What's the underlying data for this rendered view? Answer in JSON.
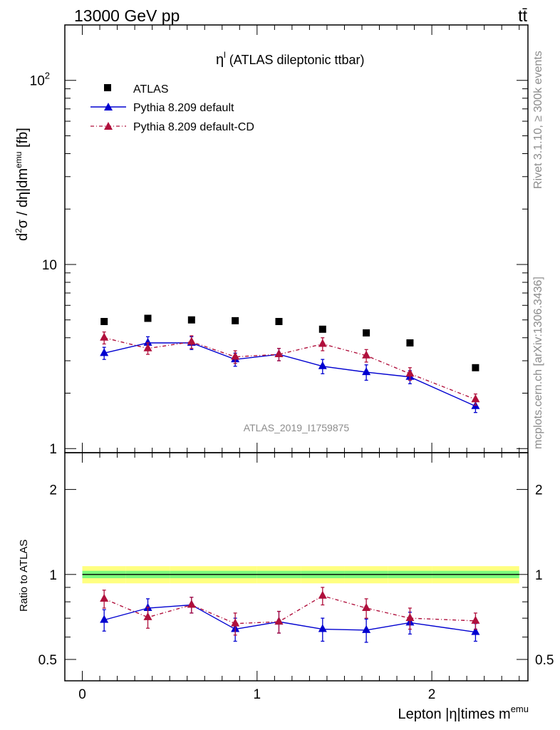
{
  "header": {
    "left": "13000 GeV pp",
    "right": "tt̄"
  },
  "side_labels": {
    "rivet": "Rivet 3.1.10, ≥ 300k events",
    "mcplots": "mcplots.cern.ch [arXiv:1306.3436]"
  },
  "plot_title": {
    "main": "η",
    "sup": "l",
    "rest": " (ATLAS dileptonic ttbar)"
  },
  "watermark": "ATLAS_2019_I1759875",
  "y_label_main": "d²σ / dη|dm^emu [fb]",
  "y_label_ratio": "Ratio to ATLAS",
  "x_label": {
    "main": "Lepton |η|times m",
    "sup": "emu"
  },
  "legend": [
    {
      "label": "ATLAS",
      "series": "atlas"
    },
    {
      "label": "Pythia 8.209 default",
      "series": "default"
    },
    {
      "label": "Pythia 8.209 default-CD",
      "series": "cd"
    }
  ],
  "colors": {
    "atlas": "#000000",
    "default": "#0000d0",
    "cd": "#b0103c",
    "band_inner": "#7cfc7c",
    "band_outer": "#ffff80"
  },
  "chart_data": {
    "type": "scatter",
    "x_range": [
      -0.1,
      2.55
    ],
    "main": {
      "y_scale": "log",
      "y_range": [
        0.95,
        200
      ],
      "y_tick_labels": [
        {
          "value": 1,
          "label": "1"
        },
        {
          "value": 10,
          "label": "10"
        },
        {
          "value": 100,
          "label": "10",
          "sup": "2"
        }
      ]
    },
    "ratio": {
      "y_scale": "log",
      "y_range": [
        0.42,
        2.7
      ],
      "y_tick_labels": [
        {
          "value": 0.5,
          "label": "0.5"
        },
        {
          "value": 1,
          "label": "1"
        },
        {
          "value": 2,
          "label": "2"
        }
      ]
    },
    "x_tick_labels": [
      {
        "value": 0,
        "label": "0"
      },
      {
        "value": 1,
        "label": "1"
      },
      {
        "value": 2,
        "label": "2"
      }
    ],
    "bins": [
      [
        0.0,
        0.25
      ],
      [
        0.25,
        0.5
      ],
      [
        0.5,
        0.75
      ],
      [
        0.75,
        1.0
      ],
      [
        1.0,
        1.25
      ],
      [
        1.25,
        1.5
      ],
      [
        1.5,
        1.75
      ],
      [
        1.75,
        2.0
      ],
      [
        2.0,
        2.5
      ]
    ],
    "x": [
      0.125,
      0.375,
      0.625,
      0.875,
      1.125,
      1.375,
      1.625,
      1.875,
      2.25
    ],
    "series": [
      {
        "name": "ATLAS",
        "key": "atlas",
        "values": [
          4.9,
          5.1,
          5.0,
          4.95,
          4.9,
          4.45,
          4.25,
          3.75,
          2.75
        ],
        "rel_band_inner": 0.03,
        "rel_band_outer": 0.07
      },
      {
        "name": "Pythia 8.209 default",
        "key": "default",
        "values": [
          3.3,
          3.75,
          3.75,
          3.05,
          3.25,
          2.8,
          2.6,
          2.45,
          1.7
        ],
        "errors": [
          0.25,
          0.3,
          0.3,
          0.25,
          0.25,
          0.25,
          0.25,
          0.2,
          0.13
        ],
        "ratio": [
          0.69,
          0.76,
          0.78,
          0.64,
          0.68,
          0.64,
          0.635,
          0.675,
          0.625
        ],
        "ratio_errors": [
          0.06,
          0.06,
          0.05,
          0.06,
          0.06,
          0.06,
          0.06,
          0.06,
          0.045
        ]
      },
      {
        "name": "Pythia 8.209 default-CD",
        "key": "cd",
        "values": [
          4.0,
          3.5,
          3.8,
          3.15,
          3.25,
          3.7,
          3.2,
          2.55,
          1.85
        ],
        "errors": [
          0.3,
          0.25,
          0.3,
          0.25,
          0.25,
          0.3,
          0.25,
          0.2,
          0.13
        ],
        "ratio": [
          0.82,
          0.705,
          0.78,
          0.67,
          0.68,
          0.84,
          0.76,
          0.7,
          0.685
        ],
        "ratio_errors": [
          0.06,
          0.06,
          0.05,
          0.06,
          0.06,
          0.06,
          0.06,
          0.06,
          0.045
        ]
      }
    ]
  }
}
